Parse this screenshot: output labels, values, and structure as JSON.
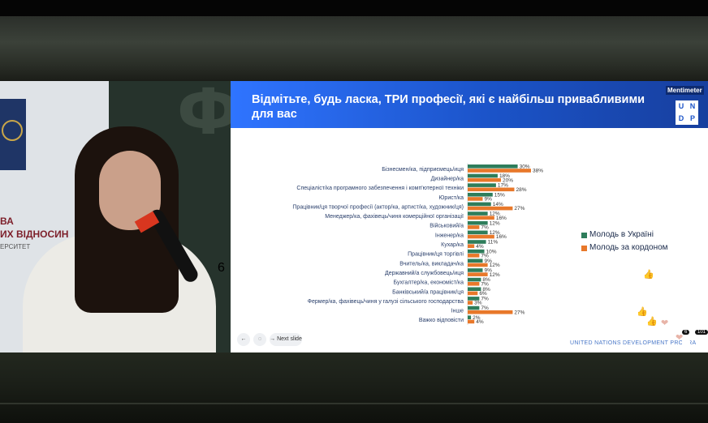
{
  "slide": {
    "title": "Відмітьте, будь ласка, ТРИ професії, які є найбільш привабливими для вас",
    "brand": "Mentimeter",
    "undp_letters": [
      "U",
      "N",
      "D",
      "P"
    ],
    "footer": "UNITED NATIONS DEVELOPMENT PROGRA",
    "nav": {
      "next_label": "Next slide",
      "back_icon": "arrow-left-icon",
      "bulb_icon": "lightbulb-icon"
    }
  },
  "video": {
    "glyph": "Ф",
    "number": "6",
    "logo_line1": "ВА",
    "logo_line2": "ИХ ВІДНОСИН",
    "logo_line3": "ЕРСИТЕТ"
  },
  "overlay": {
    "counter_left": "6",
    "counter_right": "101"
  },
  "colors": {
    "series1": "#2e7d5b",
    "series2": "#e8782a",
    "header": "#1b53c8"
  },
  "chart_data": {
    "type": "bar",
    "orientation": "horizontal",
    "categories": [
      "Бізнесмен/ка, підприємець/иця",
      "Дизайнер/ка",
      "Спеціаліст/ка програмного забезпечення і комп'ютерної техніки",
      "Юрист/ка",
      "Працівник/ця творчої професії (актор/ка, артист/ка, художник/ця)",
      "Менеджер/ка, фахівець/чиня комерційної організації",
      "Військовий/а",
      "Інженер/ка",
      "Кухар/ка",
      "Працівник/ця торгівлі",
      "Вчитель/ка, викладач/ка",
      "Державний/а службовець/иця",
      "Бухгалтер/ка, економіст/ка",
      "Банківський/а працівник/ця",
      "Фермер/ка, фахівець/чиня у галузі сільського господарства",
      "Інше",
      "Важко відповісти"
    ],
    "series": [
      {
        "name": "Молодь в Україні",
        "color": "#2e7d5b",
        "values": [
          30,
          18,
          17,
          15,
          14,
          12,
          12,
          12,
          11,
          10,
          9,
          9,
          8,
          8,
          7,
          7,
          2
        ]
      },
      {
        "name": "Молодь за кордоном",
        "color": "#e8782a",
        "values": [
          38,
          20,
          28,
          9,
          27,
          16,
          7,
          16,
          4,
          7,
          12,
          12,
          7,
          6,
          3,
          27,
          4
        ]
      }
    ],
    "value_suffix": "%",
    "xlim": [
      0,
      38
    ],
    "legend_position": "right",
    "grid": false
  }
}
